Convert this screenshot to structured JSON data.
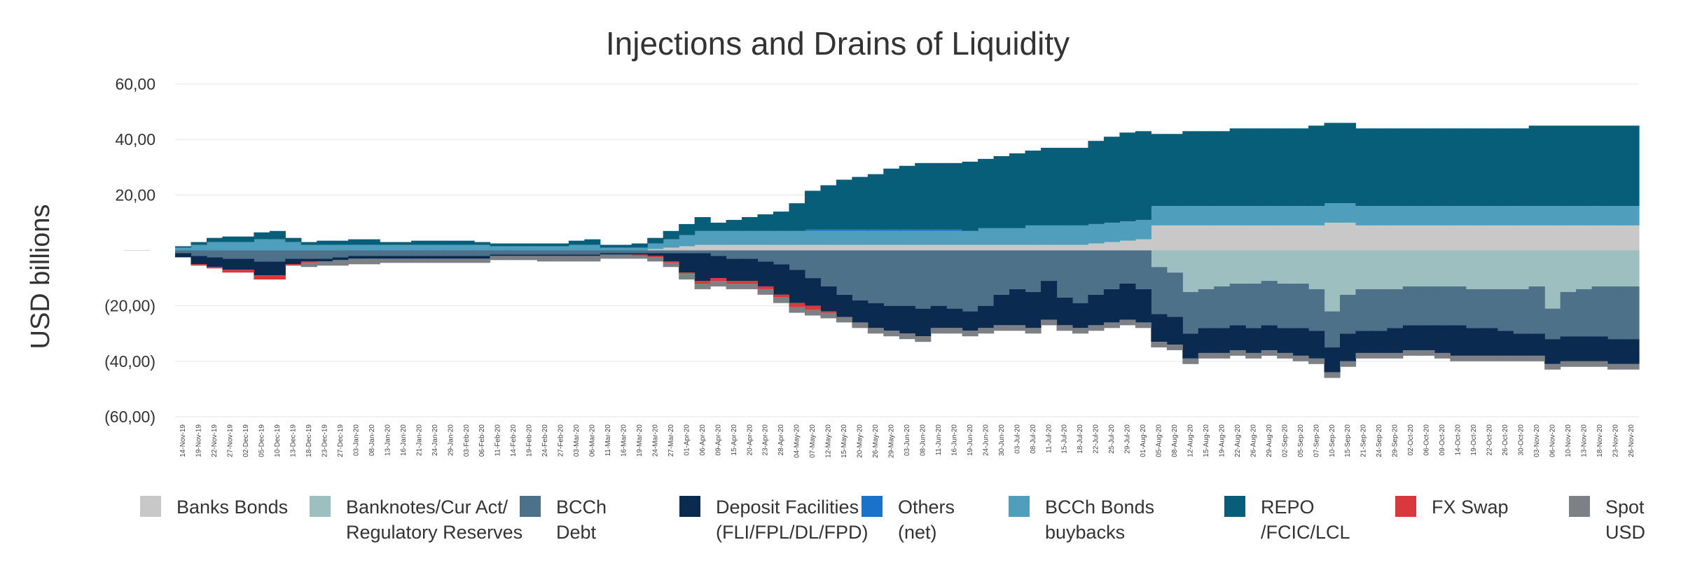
{
  "chart_data": {
    "type": "area",
    "title": "Injections and Drains of Liquidity",
    "xlabel": "",
    "ylabel": "USD billions",
    "ylim": [
      -60,
      60
    ],
    "yticks": [
      60,
      40,
      20,
      0,
      -20,
      -40,
      -60
    ],
    "ytick_labels": [
      "60,00",
      "40,00",
      "20,00",
      "",
      "(20,00)",
      "(40,00)",
      "(60,00)"
    ],
    "grid": true,
    "legend_position": "bottom",
    "x": [
      "14-Nov-19",
      "19-Nov-19",
      "22-Nov-19",
      "27-Nov-19",
      "02-Dec-19",
      "05-Dec-19",
      "10-Dec-19",
      "13-Dec-19",
      "18-Dec-19",
      "23-Dec-19",
      "27-Dec-19",
      "03-Jan-20",
      "08-Jan-20",
      "13-Jan-20",
      "16-Jan-20",
      "21-Jan-20",
      "24-Jan-20",
      "29-Jan-20",
      "03-Feb-20",
      "06-Feb-20",
      "11-Feb-20",
      "14-Feb-20",
      "19-Feb-20",
      "24-Feb-20",
      "27-Feb-20",
      "03-Mar-20",
      "06-Mar-20",
      "11-Mar-20",
      "16-Mar-20",
      "19-Mar-20",
      "24-Mar-20",
      "27-Mar-20",
      "01-Apr-20",
      "06-Apr-20",
      "09-Apr-20",
      "15-Apr-20",
      "20-Apr-20",
      "23-Apr-20",
      "28-Apr-20",
      "04-May-20",
      "07-May-20",
      "12-May-20",
      "15-May-20",
      "20-May-20",
      "26-May-20",
      "29-May-20",
      "03-Jun-20",
      "08-Jun-20",
      "11-Jun-20",
      "16-Jun-20",
      "19-Jun-20",
      "24-Jun-20",
      "30-Jun-20",
      "03-Jul-20",
      "08-Jul-20",
      "11-Jul-20",
      "15-Jul-20",
      "18-Jul-20",
      "22-Jul-20",
      "25-Jul-20",
      "29-Jul-20",
      "01-Aug-20",
      "05-Aug-20",
      "08-Aug-20",
      "12-Aug-20",
      "15-Aug-20",
      "19-Aug-20",
      "22-Aug-20",
      "26-Aug-20",
      "29-Aug-20",
      "02-Sep-20",
      "05-Sep-20",
      "07-Sep-20",
      "10-Sep-20",
      "15-Sep-20",
      "21-Sep-20",
      "24-Sep-20",
      "29-Sep-20",
      "02-Oct-20",
      "06-Oct-20",
      "09-Oct-20",
      "14-Oct-20",
      "19-Oct-20",
      "22-Oct-20",
      "26-Oct-20",
      "30-Oct-20",
      "03-Nov-20",
      "06-Nov-20",
      "10-Nov-20",
      "13-Nov-20",
      "18-Nov-20",
      "23-Nov-20",
      "26-Nov-20"
    ],
    "series": [
      {
        "name": "Banks Bonds",
        "color": "#c8c8c8",
        "values": [
          0,
          0,
          0,
          0,
          0,
          0,
          0,
          0,
          0,
          0,
          0,
          0,
          0,
          0,
          0,
          0,
          0,
          0,
          0,
          0,
          0,
          0,
          0,
          0,
          0,
          0,
          0,
          0,
          0,
          0,
          0.5,
          1,
          1.5,
          2,
          2,
          2,
          2,
          2,
          2,
          2,
          2,
          2,
          2,
          2,
          2,
          2,
          2,
          2,
          2,
          2,
          2,
          2,
          2,
          2,
          2,
          2,
          2,
          2,
          2.5,
          3,
          3.5,
          4,
          9,
          9,
          9,
          9,
          9,
          9,
          9,
          9,
          9,
          9,
          9,
          10,
          10,
          9,
          9,
          9,
          9,
          9,
          9,
          9,
          9,
          9,
          9,
          9,
          9,
          9,
          9,
          9,
          9,
          9,
          9
        ]
      },
      {
        "name": "Banknotes/Cur Act/ Regulatory Reserves",
        "color": "#9dbfbf",
        "values": [
          0,
          0,
          0,
          0,
          0,
          0,
          0,
          0,
          0,
          0,
          0,
          0,
          0,
          0,
          0,
          0,
          0,
          0,
          0,
          0,
          0,
          0,
          0,
          0,
          0,
          0,
          0,
          0,
          0,
          0,
          0,
          0,
          0,
          0,
          0,
          0,
          0,
          0,
          0,
          0,
          0,
          0,
          0,
          0,
          0,
          0,
          0,
          0,
          0,
          0,
          0,
          0,
          0,
          0,
          0,
          0,
          0,
          0,
          0,
          0,
          0,
          0,
          -6,
          -8,
          -15,
          -14,
          -13,
          -12,
          -12,
          -11,
          -12,
          -12,
          -14,
          -22,
          -16,
          -14,
          -14,
          -14,
          -13,
          -13,
          -13,
          -13,
          -14,
          -14,
          -14,
          -14,
          -13,
          -21,
          -15,
          -14,
          -13,
          -13,
          -13
        ]
      },
      {
        "name": "BCCh Debt",
        "color": "#4c7189",
        "values": [
          -1,
          -2,
          -2.5,
          -3,
          -3,
          -4,
          -4,
          -3,
          -3,
          -3,
          -2.5,
          -2,
          -2,
          -2,
          -2,
          -2,
          -2,
          -2,
          -2,
          -2,
          -1.5,
          -1.5,
          -1.5,
          -1.5,
          -1.5,
          -1.5,
          -1.5,
          -1,
          -1,
          -1,
          -1,
          -1,
          -1,
          -1,
          -2,
          -3,
          -3,
          -4,
          -5,
          -7,
          -10,
          -13,
          -16,
          -18,
          -19,
          -20,
          -20,
          -21,
          -20,
          -21,
          -22,
          -20,
          -16,
          -14,
          -15,
          -11,
          -17,
          -19,
          -16,
          -14,
          -12,
          -14,
          -17,
          -16,
          -15,
          -14,
          -15,
          -15,
          -16,
          -16,
          -16,
          -16,
          -15,
          -13,
          -14,
          -15,
          -15,
          -14,
          -14,
          -14,
          -14,
          -14,
          -14,
          -14,
          -15,
          -16,
          -17,
          -11,
          -16,
          -17,
          -18,
          -19,
          -19
        ]
      },
      {
        "name": "Deposit Facilities (FLI/FPL/DL/FPD)",
        "color": "#0b2a4f",
        "values": [
          -1.5,
          -3,
          -3.5,
          -4,
          -4,
          -5,
          -5,
          -2,
          -1,
          -1,
          -1,
          -1,
          -1,
          -1,
          -1,
          -1,
          -1,
          -1,
          -1,
          -1,
          -0.5,
          -0.5,
          -0.5,
          -0.5,
          -0.5,
          -0.5,
          -0.5,
          -0.5,
          -0.5,
          -0.5,
          -1,
          -3,
          -7,
          -10,
          -8,
          -8,
          -8,
          -9,
          -11,
          -12,
          -10,
          -9,
          -8,
          -8,
          -9,
          -9,
          -10,
          -10,
          -8,
          -7,
          -7,
          -8,
          -11,
          -13,
          -13,
          -14,
          -10,
          -9,
          -11,
          -12,
          -13,
          -12,
          -10,
          -10,
          -9,
          -9,
          -9,
          -9,
          -9,
          -9,
          -9,
          -10,
          -10,
          -9,
          -10,
          -8,
          -8,
          -9,
          -9,
          -9,
          -10,
          -11,
          -10,
          -10,
          -9,
          -8,
          -8,
          -9,
          -9,
          -9,
          -9,
          -9,
          -9
        ]
      },
      {
        "name": "Others (net)",
        "color": "#1a73c8",
        "values": [
          0,
          0,
          0,
          0,
          0,
          0,
          0,
          0,
          0,
          0,
          0,
          0,
          0,
          0,
          0,
          0,
          0,
          0,
          0,
          0,
          0,
          0,
          0,
          0,
          0,
          0,
          0,
          0,
          0,
          0,
          0,
          0,
          0,
          0,
          0,
          0,
          0,
          0,
          0,
          0,
          0.5,
          0.5,
          0.5,
          0.5,
          0.5,
          0.5,
          0.5,
          0.5,
          0.5,
          0.5,
          0,
          0,
          0,
          0,
          0,
          0,
          0,
          0,
          0,
          0,
          0,
          0,
          0,
          0,
          0,
          0,
          0,
          0,
          0,
          0,
          0,
          0,
          0,
          0,
          0,
          0,
          0,
          0,
          0,
          0,
          0,
          0,
          0,
          0,
          0,
          0,
          0,
          0,
          0,
          0,
          0,
          0,
          0
        ]
      },
      {
        "name": "BCCh Bonds buybacks",
        "color": "#4f9ebb",
        "values": [
          1,
          2,
          3,
          3,
          3,
          4,
          4,
          3,
          2,
          2,
          2,
          2,
          2,
          2,
          2,
          2,
          2,
          2,
          2,
          2,
          1.5,
          1.5,
          1.5,
          1.5,
          1.5,
          2,
          2,
          1,
          1,
          1,
          2,
          3,
          4,
          5,
          5,
          5,
          5,
          5,
          5,
          5,
          5,
          5,
          5,
          5,
          5,
          5,
          5,
          5,
          5,
          5,
          5,
          6,
          6,
          6,
          7,
          7,
          7,
          7,
          7,
          7,
          7,
          7,
          7,
          7,
          7,
          7,
          7,
          7,
          7,
          7,
          7,
          7,
          7,
          7,
          7,
          7,
          7,
          7,
          7,
          7,
          7,
          7,
          7,
          7,
          7,
          7,
          7,
          7,
          7,
          7,
          7,
          7,
          7
        ]
      },
      {
        "name": "REPO /FCIC/LCL",
        "color": "#065e79",
        "values": [
          0.5,
          1,
          1.5,
          2,
          2,
          2.5,
          3,
          1.5,
          1,
          1.5,
          1.5,
          2,
          2,
          1,
          1,
          1.5,
          1.5,
          1.5,
          1.5,
          1,
          1,
          1,
          1,
          1,
          1,
          1.5,
          2,
          1,
          1,
          1.5,
          2,
          3,
          4,
          5,
          3,
          4,
          5,
          6,
          7,
          10,
          14,
          16,
          18,
          19,
          20,
          22,
          23,
          24,
          24,
          24,
          25,
          25,
          26,
          27,
          27,
          28,
          28,
          28,
          30,
          31,
          32,
          32,
          26,
          26,
          27,
          27,
          27,
          28,
          28,
          28,
          28,
          28,
          29,
          29,
          29,
          28,
          28,
          28,
          28,
          28,
          28,
          28,
          28,
          28,
          28,
          28,
          29,
          29,
          29,
          29,
          29,
          29,
          29
        ]
      },
      {
        "name": "FX Swap",
        "color": "#d9383c",
        "values": [
          0,
          -0.5,
          -0.5,
          -1,
          -1,
          -1.5,
          -1.5,
          -0.5,
          -0.5,
          0,
          0,
          0,
          0,
          0,
          0,
          0,
          0,
          0,
          0,
          0,
          0,
          0,
          0,
          0,
          0,
          0,
          0,
          0,
          0,
          -0.5,
          -0.5,
          -0.5,
          -0.5,
          -1,
          -1,
          -1,
          -1,
          -1,
          -1,
          -1.5,
          -1.5,
          -0.5,
          0,
          0,
          0,
          0,
          0,
          0,
          0,
          0,
          0,
          0,
          0,
          0,
          0,
          0,
          0,
          0,
          0,
          0,
          0,
          0,
          0,
          0,
          0,
          0,
          0,
          0,
          0,
          0,
          0,
          0,
          0,
          0,
          0,
          0,
          0,
          0,
          0,
          0,
          0,
          0,
          0,
          0,
          0,
          0,
          0,
          0,
          0,
          0,
          0,
          0,
          0
        ]
      },
      {
        "name": "Spot USD",
        "color": "#7d8085",
        "values": [
          0,
          0,
          0,
          0,
          0,
          0,
          0,
          0,
          -1.5,
          -1.5,
          -2,
          -2,
          -2,
          -1.5,
          -1.5,
          -1.5,
          -1.5,
          -1.5,
          -1.5,
          -1.5,
          -1.5,
          -1.5,
          -1.5,
          -2,
          -2,
          -2,
          -2,
          -1.5,
          -1.5,
          -1,
          -1.5,
          -1.5,
          -2,
          -2,
          -2,
          -2,
          -2,
          -2,
          -2,
          -2,
          -2,
          -2,
          -2,
          -2,
          -2,
          -2,
          -2,
          -2,
          -2,
          -2,
          -2,
          -2,
          -2,
          -2,
          -2,
          -2,
          -2,
          -2,
          -2,
          -2,
          -2,
          -2,
          -2,
          -2,
          -2,
          -2,
          -2,
          -2,
          -2,
          -2,
          -2,
          -2,
          -2,
          -2,
          -2,
          -2,
          -2,
          -2,
          -2,
          -2,
          -2,
          -2,
          -2,
          -2,
          -2,
          -2,
          -2,
          -2,
          -2,
          -2,
          -2,
          -2,
          -2
        ]
      }
    ],
    "legend": [
      {
        "key": "banks-bonds",
        "lines": [
          "Banks Bonds"
        ],
        "color": "#c8c8c8"
      },
      {
        "key": "banknotes",
        "lines": [
          "Banknotes/Cur Act/",
          "Regulatory Reserves"
        ],
        "color": "#9dbfbf"
      },
      {
        "key": "bcch-debt",
        "lines": [
          "BCCh",
          "Debt"
        ],
        "color": "#4c7189"
      },
      {
        "key": "deposit-facilities",
        "lines": [
          "Deposit Facilities",
          "(FLI/FPL/DL/FPD)"
        ],
        "color": "#0b2a4f"
      },
      {
        "key": "others",
        "lines": [
          "Others",
          "(net)"
        ],
        "color": "#1a73c8"
      },
      {
        "key": "bcch-bonds-buybacks",
        "lines": [
          "BCCh Bonds",
          "buybacks"
        ],
        "color": "#4f9ebb"
      },
      {
        "key": "repo",
        "lines": [
          "REPO",
          "/FCIC/LCL"
        ],
        "color": "#065e79"
      },
      {
        "key": "fx-swap",
        "lines": [
          "FX Swap"
        ],
        "color": "#d9383c"
      },
      {
        "key": "spot-usd",
        "lines": [
          "Spot",
          "USD"
        ],
        "color": "#7d8085"
      }
    ]
  }
}
